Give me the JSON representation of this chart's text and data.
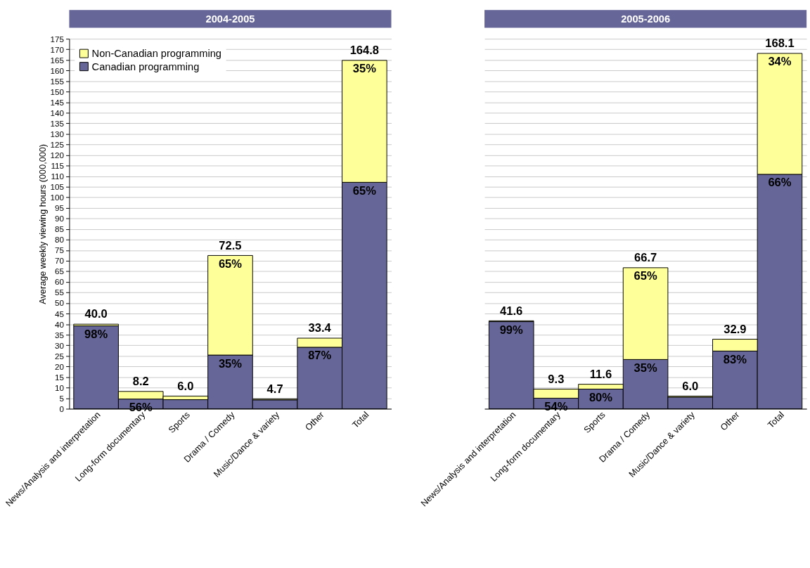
{
  "chart_data": [
    {
      "type": "bar",
      "title": "2004-2005",
      "ylabel": "Average weekly viewing hours (000,000)",
      "categories": [
        "News/Analysis and interpretation",
        "Long-form documentary",
        "Sports",
        "Drama / Comedy",
        "Music/Dance & variety",
        "Other",
        "Total"
      ],
      "stacked": true,
      "ylim": [
        0,
        175
      ],
      "yticks": [
        0,
        5,
        10,
        15,
        20,
        25,
        30,
        35,
        40,
        45,
        50,
        55,
        60,
        65,
        70,
        75,
        80,
        85,
        90,
        95,
        100,
        105,
        110,
        115,
        120,
        125,
        130,
        135,
        140,
        145,
        150,
        155,
        160,
        165,
        170,
        175
      ],
      "grid": "y",
      "legend": "top left",
      "series": [
        {
          "name": "Canadian programming",
          "color": "#666699",
          "values": [
            39.2,
            4.6,
            4.3,
            25.4,
            4.2,
            29.1,
            107.1
          ]
        },
        {
          "name": "Non-Canadian programming",
          "color": "#ffff99",
          "values": [
            0.8,
            3.6,
            1.7,
            47.1,
            0.5,
            4.3,
            57.7
          ]
        }
      ],
      "totals": [
        "40.0",
        "8.2",
        "6.0",
        "72.5",
        "4.7",
        "33.4",
        "164.8"
      ],
      "annotations": [
        {
          "text": "98%",
          "x": "News/Analysis and interpretation",
          "y": 39.2
        },
        {
          "text": "56%",
          "x": "Long-form documentary",
          "y": 4.6
        },
        {
          "text": "35%",
          "x": "Drama / Comedy",
          "y": 25.4
        },
        {
          "text": "65%",
          "x": "Drama / Comedy",
          "y": 72.5
        },
        {
          "text": "87%",
          "x": "Other",
          "y": 29.1
        },
        {
          "text": "65%",
          "x": "Total",
          "y": 107.1
        },
        {
          "text": "35%",
          "x": "Total",
          "y": 164.8
        }
      ]
    },
    {
      "type": "bar",
      "title": "2005-2006",
      "categories": [
        "News/Analysis and interpretation",
        "Long-form documentary",
        "Sports",
        "Drama / Comedy",
        "Music/Dance & variety",
        "Other",
        "Total"
      ],
      "stacked": true,
      "ylim": [
        0,
        175
      ],
      "yticks": [
        0,
        5,
        10,
        15,
        20,
        25,
        30,
        35,
        40,
        45,
        50,
        55,
        60,
        65,
        70,
        75,
        80,
        85,
        90,
        95,
        100,
        105,
        110,
        115,
        120,
        125,
        130,
        135,
        140,
        145,
        150,
        155,
        160,
        165,
        170,
        175
      ],
      "grid": "y",
      "tick_labels": "x",
      "series": [
        {
          "name": "Canadian programming",
          "color": "#666699",
          "values": [
            41.2,
            5.0,
            9.3,
            23.3,
            5.5,
            27.3,
            110.9
          ]
        },
        {
          "name": "Non-Canadian programming",
          "color": "#ffff99",
          "values": [
            0.4,
            4.3,
            2.3,
            43.4,
            0.5,
            5.6,
            57.2
          ]
        }
      ],
      "totals": [
        "41.6",
        "9.3",
        "11.6",
        "66.7",
        "6.0",
        "32.9",
        "168.1"
      ],
      "annotations": [
        {
          "text": "99%",
          "x": "News/Analysis and interpretation",
          "y": 41.2
        },
        {
          "text": "54%",
          "x": "Long-form documentary",
          "y": 5.0
        },
        {
          "text": "80%",
          "x": "Sports",
          "y": 9.3
        },
        {
          "text": "35%",
          "x": "Drama / Comedy",
          "y": 23.3
        },
        {
          "text": "65%",
          "x": "Drama / Comedy",
          "y": 66.7
        },
        {
          "text": "83%",
          "x": "Other",
          "y": 27.3
        },
        {
          "text": "66%",
          "x": "Total",
          "y": 110.9
        },
        {
          "text": "34%",
          "x": "Total",
          "y": 168.1
        }
      ]
    }
  ]
}
